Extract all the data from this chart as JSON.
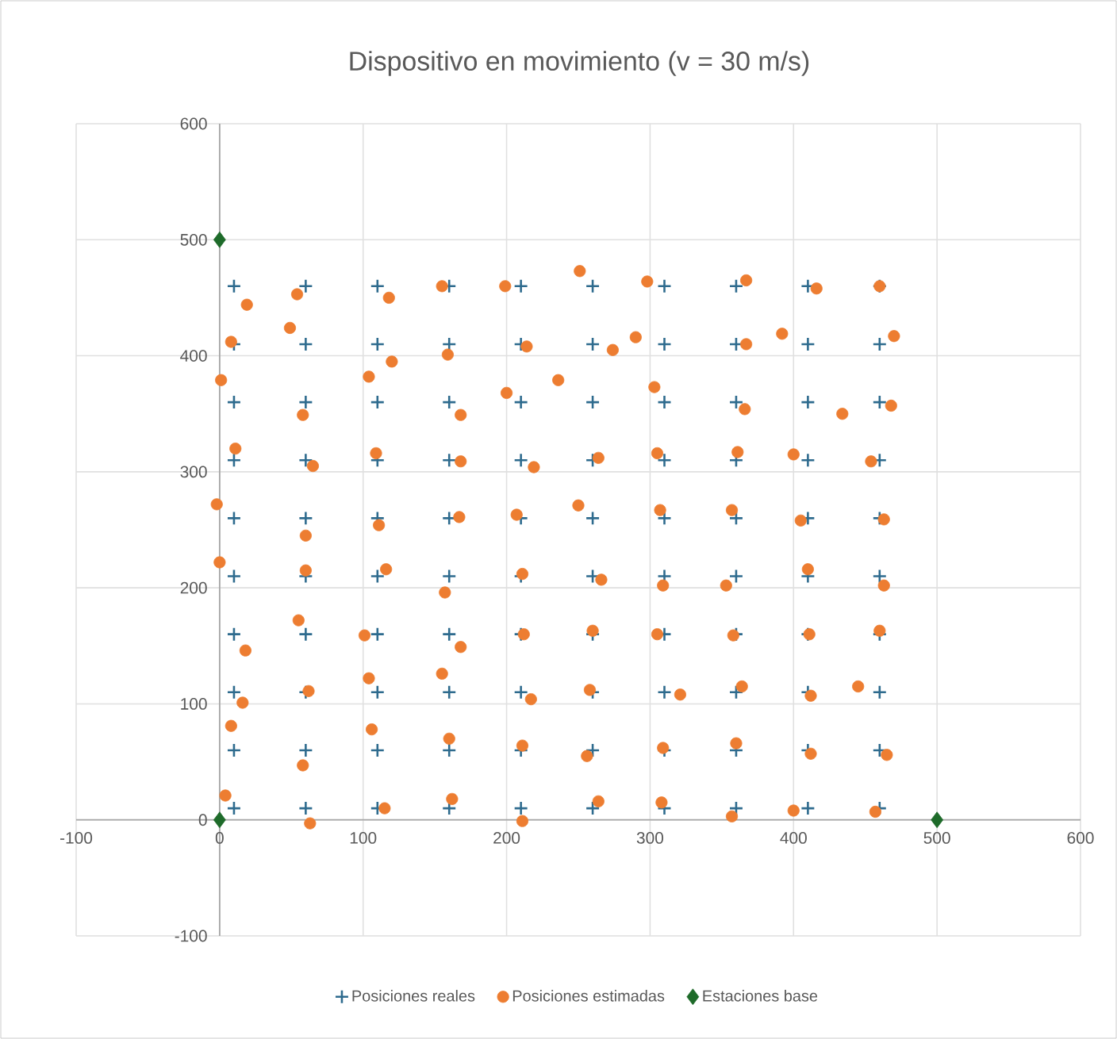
{
  "chart_data": {
    "type": "scatter",
    "title": "Dispositivo en movimiento (v = 30 m/s)",
    "xlim": [
      -100,
      600
    ],
    "ylim": [
      -100,
      600
    ],
    "xticks": [
      -100,
      0,
      100,
      200,
      300,
      400,
      500,
      600
    ],
    "yticks": [
      -100,
      0,
      100,
      200,
      300,
      400,
      500,
      600
    ],
    "grid": true,
    "legend": "bottom",
    "series": [
      {
        "name": "Posiciones reales",
        "color": "#2e6b8e",
        "marker": "cross",
        "x": [
          10,
          60,
          110,
          160,
          210,
          260,
          310,
          360,
          410,
          460,
          10,
          60,
          110,
          160,
          210,
          260,
          310,
          360,
          410,
          460,
          10,
          60,
          110,
          160,
          210,
          260,
          310,
          360,
          410,
          460,
          10,
          60,
          110,
          160,
          210,
          260,
          310,
          360,
          410,
          460,
          10,
          60,
          110,
          160,
          210,
          260,
          310,
          360,
          410,
          460,
          10,
          60,
          110,
          160,
          210,
          260,
          310,
          360,
          410,
          460,
          10,
          60,
          110,
          160,
          210,
          260,
          310,
          360,
          410,
          460,
          10,
          60,
          110,
          160,
          210,
          260,
          310,
          360,
          410,
          460,
          10,
          60,
          110,
          160,
          210,
          260,
          310,
          360,
          410,
          460,
          10,
          60,
          110,
          160,
          210,
          260,
          310,
          360,
          410,
          460
        ],
        "values": [
          10,
          10,
          10,
          10,
          10,
          10,
          10,
          10,
          10,
          10,
          60,
          60,
          60,
          60,
          60,
          60,
          60,
          60,
          60,
          60,
          110,
          110,
          110,
          110,
          110,
          110,
          110,
          110,
          110,
          110,
          160,
          160,
          160,
          160,
          160,
          160,
          160,
          160,
          160,
          160,
          210,
          210,
          210,
          210,
          210,
          210,
          210,
          210,
          210,
          210,
          260,
          260,
          260,
          260,
          260,
          260,
          260,
          260,
          260,
          260,
          310,
          310,
          310,
          310,
          310,
          310,
          310,
          310,
          310,
          310,
          360,
          360,
          360,
          360,
          360,
          360,
          360,
          360,
          360,
          360,
          410,
          410,
          410,
          410,
          410,
          410,
          410,
          410,
          410,
          410,
          460,
          460,
          460,
          460,
          460,
          460,
          460,
          460,
          460,
          460
        ]
      },
      {
        "name": "Posiciones estimadas",
        "color": "#ed7d31",
        "marker": "circle",
        "x": [
          4,
          63,
          115,
          162,
          211,
          264,
          308,
          357,
          400,
          457,
          8,
          58,
          106,
          160,
          211,
          256,
          309,
          360,
          412,
          465,
          16,
          62,
          104,
          155,
          217,
          258,
          321,
          364,
          412,
          445,
          18,
          55,
          101,
          168,
          212,
          260,
          305,
          358,
          411,
          460,
          0,
          60,
          116,
          157,
          211,
          266,
          309,
          353,
          410,
          463,
          -2,
          60,
          111,
          167,
          207,
          250,
          307,
          357,
          405,
          463,
          11,
          65,
          109,
          168,
          219,
          264,
          305,
          361,
          400,
          454,
          1,
          58,
          104,
          168,
          200,
          236,
          303,
          366,
          434,
          468,
          8,
          49,
          120,
          159,
          214,
          274,
          290,
          367,
          392,
          470,
          19,
          54,
          118,
          155,
          199,
          251,
          298,
          367,
          416,
          460
        ],
        "values": [
          21,
          -3,
          10,
          18,
          -1,
          16,
          15,
          3,
          8,
          7,
          81,
          47,
          78,
          70,
          64,
          55,
          62,
          66,
          57,
          56,
          101,
          111,
          122,
          126,
          104,
          112,
          108,
          115,
          107,
          115,
          146,
          172,
          159,
          149,
          160,
          163,
          160,
          159,
          160,
          163,
          222,
          215,
          216,
          196,
          212,
          207,
          202,
          202,
          216,
          202,
          272,
          245,
          254,
          261,
          263,
          271,
          267,
          267,
          258,
          259,
          320,
          305,
          316,
          309,
          304,
          312,
          316,
          317,
          315,
          309,
          379,
          349,
          382,
          349,
          368,
          379,
          373,
          354,
          350,
          357,
          412,
          424,
          395,
          401,
          408,
          405,
          416,
          410,
          419,
          417,
          444,
          453,
          450,
          460,
          460,
          473,
          464,
          465,
          458,
          460
        ]
      },
      {
        "name": "Estaciones base",
        "color": "#1e6b2a",
        "marker": "diamond",
        "x": [
          0,
          0,
          500
        ],
        "values": [
          0,
          500,
          0
        ]
      }
    ]
  }
}
